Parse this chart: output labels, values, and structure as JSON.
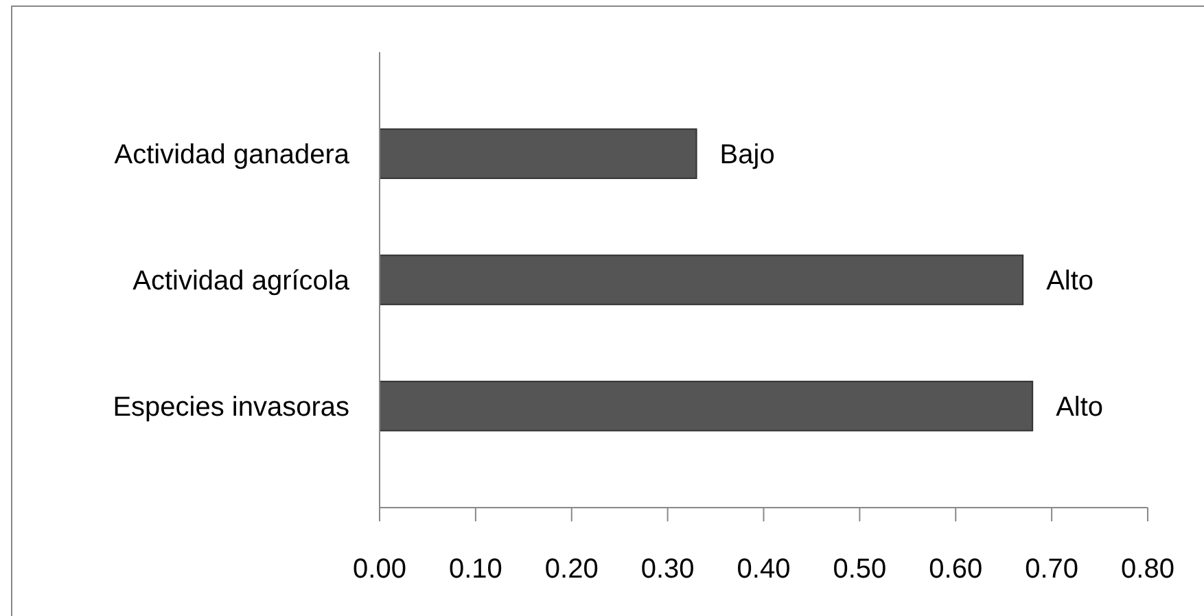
{
  "chart_data": {
    "type": "bar",
    "orientation": "horizontal",
    "categories": [
      "Actividad ganadera",
      "Actividad agrícola",
      "Especies invasoras"
    ],
    "values": [
      0.33,
      0.67,
      0.68
    ],
    "value_labels": [
      "Bajo",
      "Alto",
      "Alto"
    ],
    "color": "#555555",
    "xlim": [
      0,
      0.8
    ],
    "xticks": [
      {
        "value": 0,
        "label": "0.00"
      },
      {
        "value": 0.1,
        "label": "0.10"
      },
      {
        "value": 0.2,
        "label": "0.20"
      },
      {
        "value": 0.3,
        "label": "0.30"
      },
      {
        "value": 0.4,
        "label": "0.40"
      },
      {
        "value": 0.5,
        "label": "0.50"
      },
      {
        "value": 0.6,
        "label": "0.60"
      },
      {
        "value": 0.7,
        "label": "0.70"
      },
      {
        "value": 0.8,
        "label": "0.80"
      }
    ],
    "grid": false
  }
}
